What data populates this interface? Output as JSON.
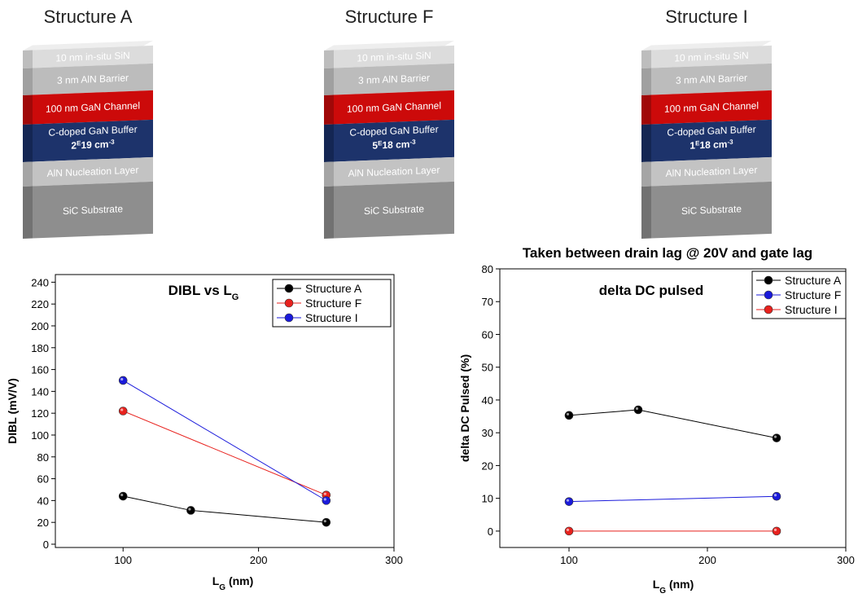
{
  "structures": [
    {
      "title": "Structure A",
      "layers": [
        "10 nm in-situ SiN",
        "3 nm AlN Barrier",
        "100 nm GaN Channel",
        "C-doped GaN Buffer",
        "AlN Nucleation Layer",
        "SiC Substrate"
      ],
      "doping": [
        "2",
        "E",
        "19 cm",
        "-3"
      ]
    },
    {
      "title": "Structure F",
      "layers": [
        "10 nm in-situ SiN",
        "3 nm AlN Barrier",
        "100 nm GaN Channel",
        "C-doped GaN Buffer",
        "AlN Nucleation Layer",
        "SiC Substrate"
      ],
      "doping": [
        "5",
        "E",
        "18 cm",
        "-3"
      ]
    },
    {
      "title": "Structure I",
      "layers": [
        "10 nm in-situ SiN",
        "3 nm AlN Barrier",
        "100 nm GaN Channel",
        "C-doped GaN Buffer",
        "AlN Nucleation Layer",
        "SiC Substrate"
      ],
      "doping": [
        "1",
        "E",
        "18 cm",
        "-3"
      ]
    }
  ],
  "chart_data": [
    {
      "type": "line",
      "title": {
        "text": "DIBL vs L",
        "sub": "G"
      },
      "x_label": {
        "text": "L",
        "sub": "G",
        "unit": " (nm)"
      },
      "y_label": "DIBL (mV/V)",
      "xlim": [
        50,
        300
      ],
      "xticks": [
        100,
        200,
        300
      ],
      "ylim": [
        -3,
        247
      ],
      "yticks": [
        0,
        20,
        40,
        60,
        80,
        100,
        120,
        140,
        160,
        180,
        200,
        220,
        240
      ],
      "legend": "upper right",
      "series": [
        {
          "name": "Structure A",
          "color": "#000000",
          "x": [
            100,
            150,
            250
          ],
          "values": [
            44,
            31,
            20
          ]
        },
        {
          "name": "Structure F",
          "color": "#e8211d",
          "x": [
            100,
            250
          ],
          "values": [
            122,
            45
          ]
        },
        {
          "name": "Structure I",
          "color": "#1a1adb",
          "x": [
            100,
            250
          ],
          "values": [
            150,
            40
          ]
        }
      ]
    },
    {
      "type": "line",
      "annotation": "Taken between drain lag @ 20V and gate lag",
      "title": {
        "text": "delta DC pulsed"
      },
      "x_label": {
        "text": "L",
        "sub": "G",
        "unit": " (nm)"
      },
      "y_label": "delta DC Pulsed (%)",
      "xlim": [
        50,
        300
      ],
      "xticks": [
        100,
        200,
        300
      ],
      "ylim": [
        -5,
        80
      ],
      "yticks": [
        0,
        10,
        20,
        30,
        40,
        50,
        60,
        70,
        80
      ],
      "legend": "upper right",
      "series": [
        {
          "name": "Structure A",
          "color": "#000000",
          "x": [
            100,
            150,
            250
          ],
          "values": [
            35.3,
            37,
            28.4
          ]
        },
        {
          "name": "Structure F",
          "color": "#1a1adb",
          "x": [
            100,
            250
          ],
          "values": [
            9,
            10.6
          ]
        },
        {
          "name": "Structure I",
          "color": "#e8211d",
          "x": [
            100,
            250
          ],
          "values": [
            0,
            0
          ]
        }
      ]
    }
  ]
}
